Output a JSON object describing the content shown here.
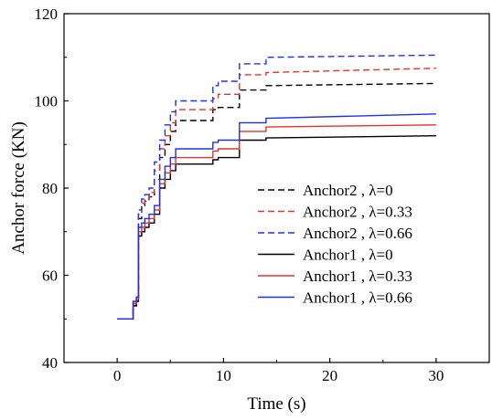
{
  "chart_data": {
    "type": "line",
    "title": "",
    "xlabel": "Time (s)",
    "ylabel": "Anchor force (KN)",
    "xlim": [
      -5,
      35
    ],
    "ylim": [
      40,
      120
    ],
    "xticks": [
      0,
      10,
      20,
      30
    ],
    "yticks": [
      40,
      60,
      80,
      100,
      120
    ],
    "legend_position": "center-right",
    "grid": false,
    "series": [
      {
        "name": "Anchor2 , λ=0",
        "color": "#000000",
        "dash": "dashed",
        "x": [
          0,
          1.5,
          1.5,
          1.8,
          1.8,
          2.0,
          2.0,
          2.3,
          2.3,
          2.6,
          2.6,
          3.0,
          3.0,
          3.5,
          3.5,
          4.0,
          4.0,
          4.5,
          4.5,
          5.0,
          5.0,
          5.5,
          5.5,
          9.0,
          9.0,
          9.5,
          9.5,
          11.5,
          11.5,
          14.0,
          14.0,
          30
        ],
        "y": [
          50,
          50,
          53,
          53,
          54,
          54,
          73,
          73,
          76,
          76,
          77,
          77,
          78,
          78,
          82,
          82,
          87,
          87,
          90,
          90,
          93,
          93,
          95.5,
          95.5,
          98,
          98,
          98.5,
          98.5,
          102.5,
          102.5,
          103.5,
          104
        ]
      },
      {
        "name": "Anchor2 , λ=0.33",
        "color": "#e8322c",
        "dash": "dashed",
        "x": [
          0,
          1.5,
          1.5,
          1.8,
          1.8,
          2.0,
          2.0,
          2.3,
          2.3,
          2.6,
          2.6,
          3.0,
          3.0,
          3.5,
          3.5,
          4.0,
          4.0,
          4.5,
          4.5,
          5.0,
          5.0,
          5.5,
          5.5,
          9.0,
          9.0,
          9.5,
          9.5,
          11.5,
          11.5,
          14.0,
          14.0,
          30
        ],
        "y": [
          50,
          50,
          53.5,
          53.5,
          54.5,
          54.5,
          74,
          74,
          76.5,
          76.5,
          77.5,
          77.5,
          79,
          79,
          84,
          84,
          89,
          89,
          92,
          92,
          95,
          95,
          98,
          98,
          100.5,
          100.5,
          101.5,
          101.5,
          106,
          106,
          106.5,
          107.5
        ]
      },
      {
        "name": "Anchor2 , λ=0.66",
        "color": "#2030e8",
        "dash": "dashed",
        "x": [
          0,
          1.5,
          1.5,
          1.8,
          1.8,
          2.0,
          2.0,
          2.3,
          2.3,
          2.6,
          2.6,
          3.0,
          3.0,
          3.5,
          3.5,
          4.0,
          4.0,
          4.5,
          4.5,
          5.0,
          5.0,
          5.5,
          5.5,
          9.0,
          9.0,
          9.5,
          9.5,
          11.5,
          11.5,
          14.0,
          14.0,
          30
        ],
        "y": [
          50,
          50,
          54,
          54,
          55,
          55,
          75,
          75,
          77.5,
          77.5,
          78.5,
          78.5,
          80,
          80,
          86,
          86,
          91,
          91,
          94.5,
          94.5,
          97.5,
          97.5,
          100,
          100,
          103.5,
          103.5,
          104.5,
          104.5,
          108.5,
          108.5,
          110,
          110.5
        ]
      },
      {
        "name": "Anchor1 , λ=0",
        "color": "#000000",
        "dash": "solid",
        "x": [
          0,
          1.5,
          1.5,
          1.8,
          1.8,
          2.0,
          2.0,
          2.3,
          2.3,
          2.6,
          2.6,
          3.0,
          3.0,
          3.5,
          3.5,
          4.0,
          4.0,
          4.5,
          4.5,
          5.0,
          5.0,
          5.5,
          5.5,
          9.0,
          9.0,
          9.5,
          9.5,
          11.5,
          11.5,
          14.0,
          14.0,
          30
        ],
        "y": [
          50,
          50,
          53,
          53,
          54,
          54,
          69,
          69,
          70,
          70,
          71,
          71,
          72,
          72,
          74,
          74,
          80,
          80,
          82,
          82,
          84,
          84,
          85.5,
          85.5,
          86.5,
          86.5,
          87,
          87,
          91,
          91,
          91.5,
          92
        ]
      },
      {
        "name": "Anchor1 , λ=0.33",
        "color": "#e8322c",
        "dash": "solid",
        "x": [
          0,
          1.5,
          1.5,
          1.8,
          1.8,
          2.0,
          2.0,
          2.3,
          2.3,
          2.6,
          2.6,
          3.0,
          3.0,
          3.5,
          3.5,
          4.0,
          4.0,
          4.5,
          4.5,
          5.0,
          5.0,
          5.5,
          5.5,
          9.0,
          9.0,
          9.5,
          9.5,
          11.5,
          11.5,
          14.0,
          14.0,
          30
        ],
        "y": [
          50,
          50,
          53.5,
          53.5,
          54.5,
          54.5,
          70,
          70,
          71,
          71,
          72,
          72,
          73,
          73,
          75,
          75,
          81,
          81,
          83.5,
          83.5,
          85.5,
          85.5,
          87,
          87,
          88.5,
          88.5,
          89,
          89,
          93,
          93,
          94,
          94.5
        ]
      },
      {
        "name": "Anchor1 , λ=0.66",
        "color": "#2030e8",
        "dash": "solid",
        "x": [
          0,
          1.5,
          1.5,
          1.8,
          1.8,
          2.0,
          2.0,
          2.3,
          2.3,
          2.6,
          2.6,
          3.0,
          3.0,
          3.5,
          3.5,
          4.0,
          4.0,
          4.5,
          4.5,
          5.0,
          5.0,
          5.5,
          5.5,
          9.0,
          9.0,
          9.5,
          9.5,
          11.5,
          11.5,
          14.0,
          14.0,
          30
        ],
        "y": [
          50,
          50,
          54,
          54,
          55,
          55,
          71,
          71,
          72,
          72,
          73,
          73,
          74,
          74,
          76,
          76,
          82,
          82,
          85,
          85,
          87,
          87,
          89,
          89,
          90.5,
          90.5,
          91,
          91,
          95,
          95,
          96,
          97
        ]
      }
    ]
  }
}
